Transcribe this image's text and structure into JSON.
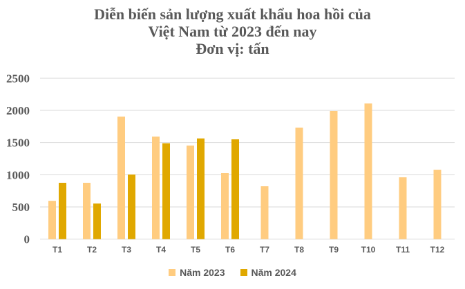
{
  "chart_data": {
    "type": "bar",
    "title_lines": [
      "Diễn biến sản lượng xuất khẩu hoa hồi của",
      "Việt Nam từ 2023 đến nay",
      "Đơn vị: tấn"
    ],
    "categories": [
      "T1",
      "T2",
      "T3",
      "T4",
      "T5",
      "T6",
      "T7",
      "T8",
      "T9",
      "T10",
      "T11",
      "T12"
    ],
    "series": [
      {
        "name": "Năm 2023",
        "color": "#FFCC80",
        "values": [
          595,
          875,
          1903,
          1593,
          1453,
          1025,
          821,
          1732,
          1989,
          2107,
          960,
          1078
        ]
      },
      {
        "name": "Năm 2024",
        "color": "#E0A800",
        "values": [
          875,
          553,
          1003,
          1489,
          1564,
          1550,
          null,
          null,
          null,
          null,
          null,
          null
        ]
      }
    ],
    "yticks": [
      "0",
      "500",
      "1000",
      "1500",
      "2000",
      "2500"
    ],
    "ylim": [
      0,
      2500
    ],
    "grid": true,
    "legend_position": "bottom"
  }
}
